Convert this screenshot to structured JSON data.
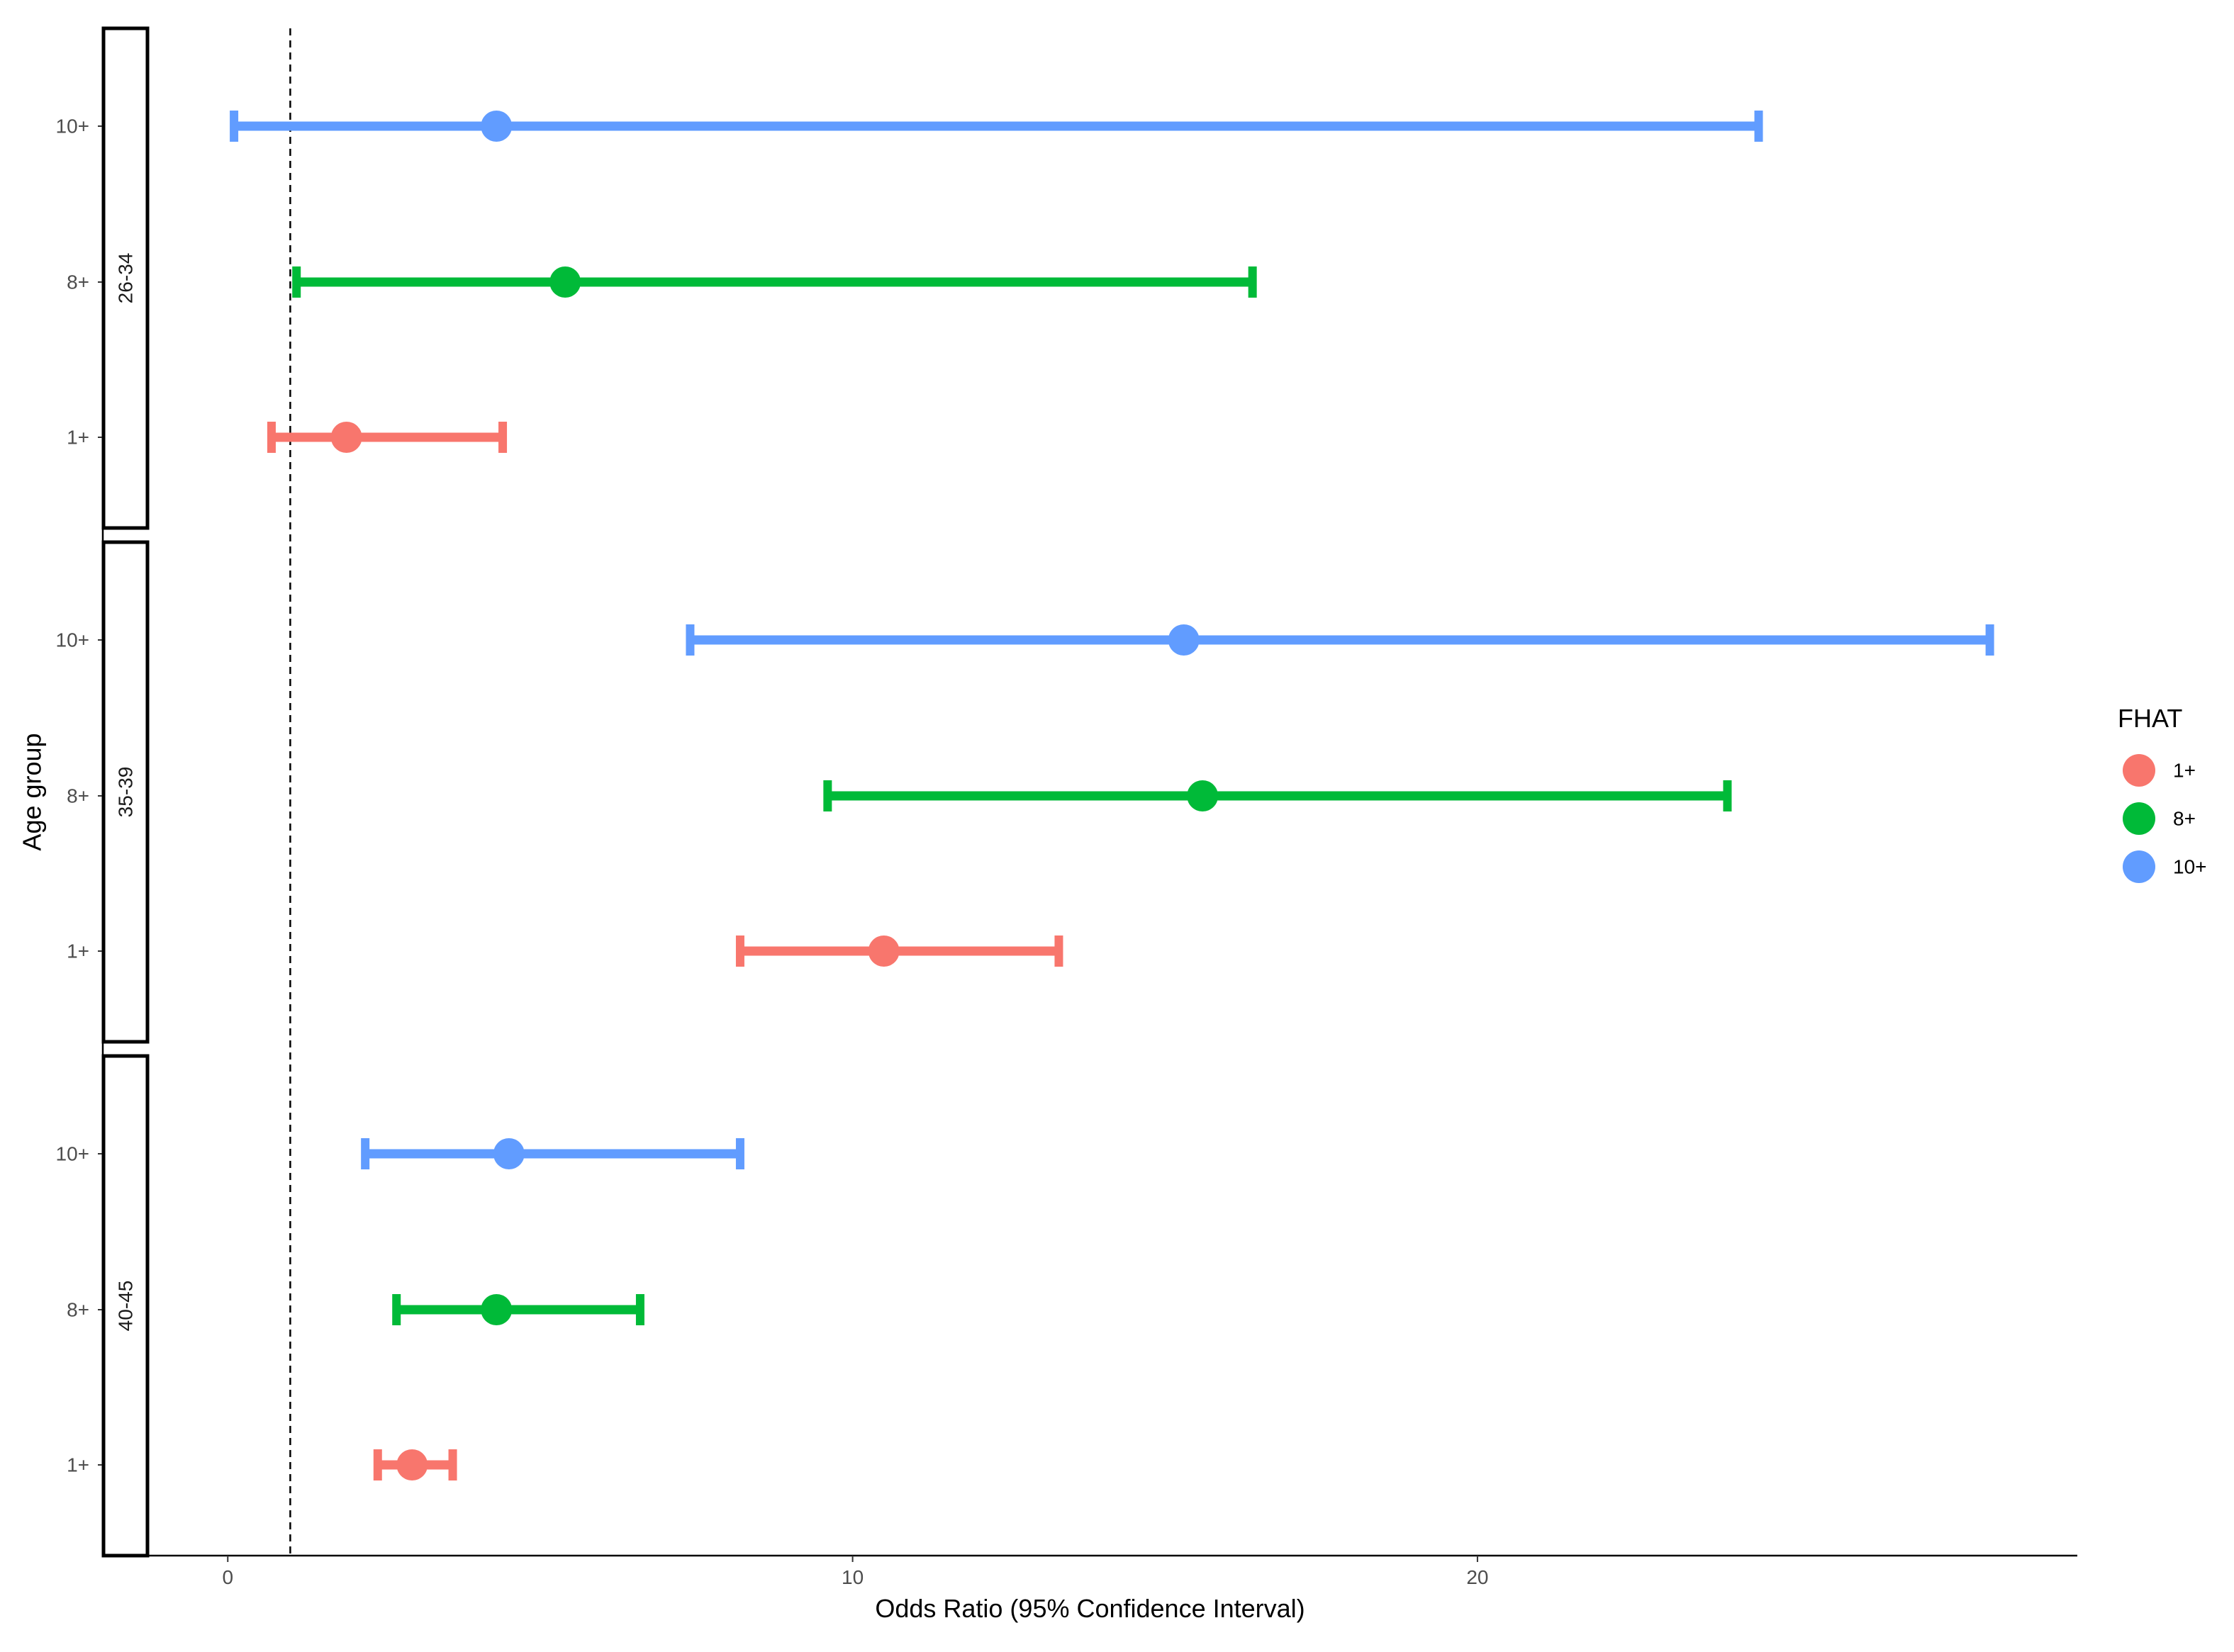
{
  "chart_data": {
    "type": "scatter",
    "subtype": "forest-plot-with-error-bars",
    "xlabel": "Odds Ratio (95% Confidence Interval)",
    "ylabel": "Age group",
    "xlim": [
      -2,
      29.6
    ],
    "x_ticks": [
      0,
      10,
      20
    ],
    "x_tick_labels": [
      "0",
      "10",
      "20"
    ],
    "reference_line": {
      "x": 1,
      "style": "dashed"
    },
    "grid": false,
    "facets": [
      "26-34",
      "35-39",
      "40-45"
    ],
    "y_categories": [
      "10+",
      "8+",
      "1+"
    ],
    "legend": {
      "title": "FHAT",
      "position": "right",
      "entries": [
        "1+",
        "8+",
        "10+"
      ]
    },
    "colors": {
      "1+": "#F8766D",
      "8+": "#00BA38",
      "10+": "#619CFF"
    },
    "series": [
      {
        "facet": "26-34",
        "group": "10+",
        "estimate": 4.3,
        "lower": 0.1,
        "upper": 24.5
      },
      {
        "facet": "26-34",
        "group": "8+",
        "estimate": 5.4,
        "lower": 1.1,
        "upper": 16.4
      },
      {
        "facet": "26-34",
        "group": "1+",
        "estimate": 1.9,
        "lower": 0.7,
        "upper": 4.4
      },
      {
        "facet": "35-39",
        "group": "10+",
        "estimate": 15.3,
        "lower": 7.4,
        "upper": 28.2
      },
      {
        "facet": "35-39",
        "group": "8+",
        "estimate": 15.6,
        "lower": 9.6,
        "upper": 24.0
      },
      {
        "facet": "35-39",
        "group": "1+",
        "estimate": 10.5,
        "lower": 8.2,
        "upper": 13.3
      },
      {
        "facet": "40-45",
        "group": "10+",
        "estimate": 4.5,
        "lower": 2.2,
        "upper": 8.2
      },
      {
        "facet": "40-45",
        "group": "8+",
        "estimate": 4.3,
        "lower": 2.7,
        "upper": 6.6
      },
      {
        "facet": "40-45",
        "group": "1+",
        "estimate": 2.95,
        "lower": 2.4,
        "upper": 3.6
      }
    ]
  }
}
